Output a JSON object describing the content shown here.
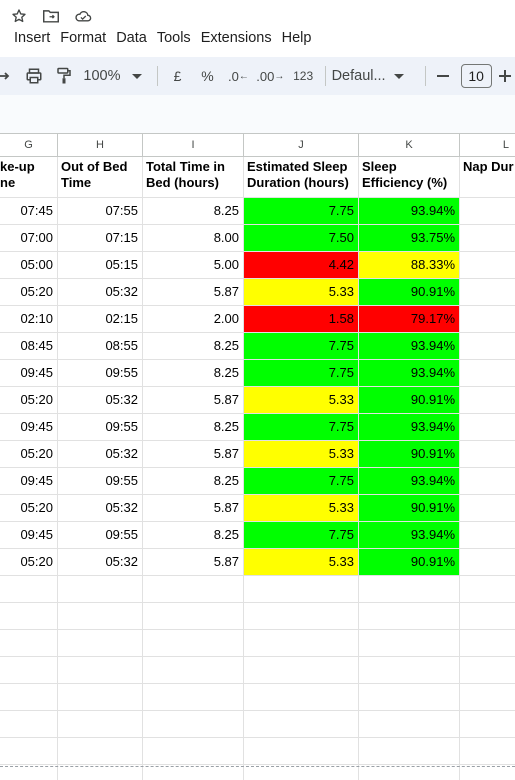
{
  "menu": [
    "Insert",
    "Format",
    "Data",
    "Tools",
    "Extensions",
    "Help"
  ],
  "toolbar": {
    "zoom": "100%",
    "currency": "£",
    "percent": "%",
    "dec_decrease": ".0",
    "dec_increase": ".00",
    "number_format": "123",
    "font_name": "Defaul...",
    "font_size": "10",
    "minus": "—"
  },
  "columns": [
    "G",
    "H",
    "I",
    "J",
    "K",
    "L"
  ],
  "headers": {
    "G": "ke-up\nne",
    "H": "Out of Bed Time",
    "I": "Total Time in Bed (hours)",
    "J": "Estimated Sleep Duration (hours)",
    "K": "Sleep Efficiency (%)",
    "L": "Nap Dur (min)"
  },
  "rows": [
    {
      "wake": "07:45",
      "out": "07:55",
      "total": "8.25",
      "sleep": "7.75",
      "eff": "93.94%",
      "sleep_color": "green",
      "eff_color": "green"
    },
    {
      "wake": "07:00",
      "out": "07:15",
      "total": "8.00",
      "sleep": "7.50",
      "eff": "93.75%",
      "sleep_color": "green",
      "eff_color": "green"
    },
    {
      "wake": "05:00",
      "out": "05:15",
      "total": "5.00",
      "sleep": "4.42",
      "eff": "88.33%",
      "sleep_color": "red",
      "eff_color": "yellow"
    },
    {
      "wake": "05:20",
      "out": "05:32",
      "total": "5.87",
      "sleep": "5.33",
      "eff": "90.91%",
      "sleep_color": "yellow",
      "eff_color": "green"
    },
    {
      "wake": "02:10",
      "out": "02:15",
      "total": "2.00",
      "sleep": "1.58",
      "eff": "79.17%",
      "sleep_color": "red",
      "eff_color": "red"
    },
    {
      "wake": "08:45",
      "out": "08:55",
      "total": "8.25",
      "sleep": "7.75",
      "eff": "93.94%",
      "sleep_color": "green",
      "eff_color": "green"
    },
    {
      "wake": "09:45",
      "out": "09:55",
      "total": "8.25",
      "sleep": "7.75",
      "eff": "93.94%",
      "sleep_color": "green",
      "eff_color": "green"
    },
    {
      "wake": "05:20",
      "out": "05:32",
      "total": "5.87",
      "sleep": "5.33",
      "eff": "90.91%",
      "sleep_color": "yellow",
      "eff_color": "green"
    },
    {
      "wake": "09:45",
      "out": "09:55",
      "total": "8.25",
      "sleep": "7.75",
      "eff": "93.94%",
      "sleep_color": "green",
      "eff_color": "green"
    },
    {
      "wake": "05:20",
      "out": "05:32",
      "total": "5.87",
      "sleep": "5.33",
      "eff": "90.91%",
      "sleep_color": "yellow",
      "eff_color": "green"
    },
    {
      "wake": "09:45",
      "out": "09:55",
      "total": "8.25",
      "sleep": "7.75",
      "eff": "93.94%",
      "sleep_color": "green",
      "eff_color": "green"
    },
    {
      "wake": "05:20",
      "out": "05:32",
      "total": "5.87",
      "sleep": "5.33",
      "eff": "90.91%",
      "sleep_color": "yellow",
      "eff_color": "green"
    },
    {
      "wake": "09:45",
      "out": "09:55",
      "total": "8.25",
      "sleep": "7.75",
      "eff": "93.94%",
      "sleep_color": "green",
      "eff_color": "green"
    },
    {
      "wake": "05:20",
      "out": "05:32",
      "total": "5.87",
      "sleep": "5.33",
      "eff": "90.91%",
      "sleep_color": "yellow",
      "eff_color": "green"
    }
  ],
  "colors": {
    "green": "#00ff00",
    "yellow": "#ffff00",
    "red": "#ff0000"
  }
}
